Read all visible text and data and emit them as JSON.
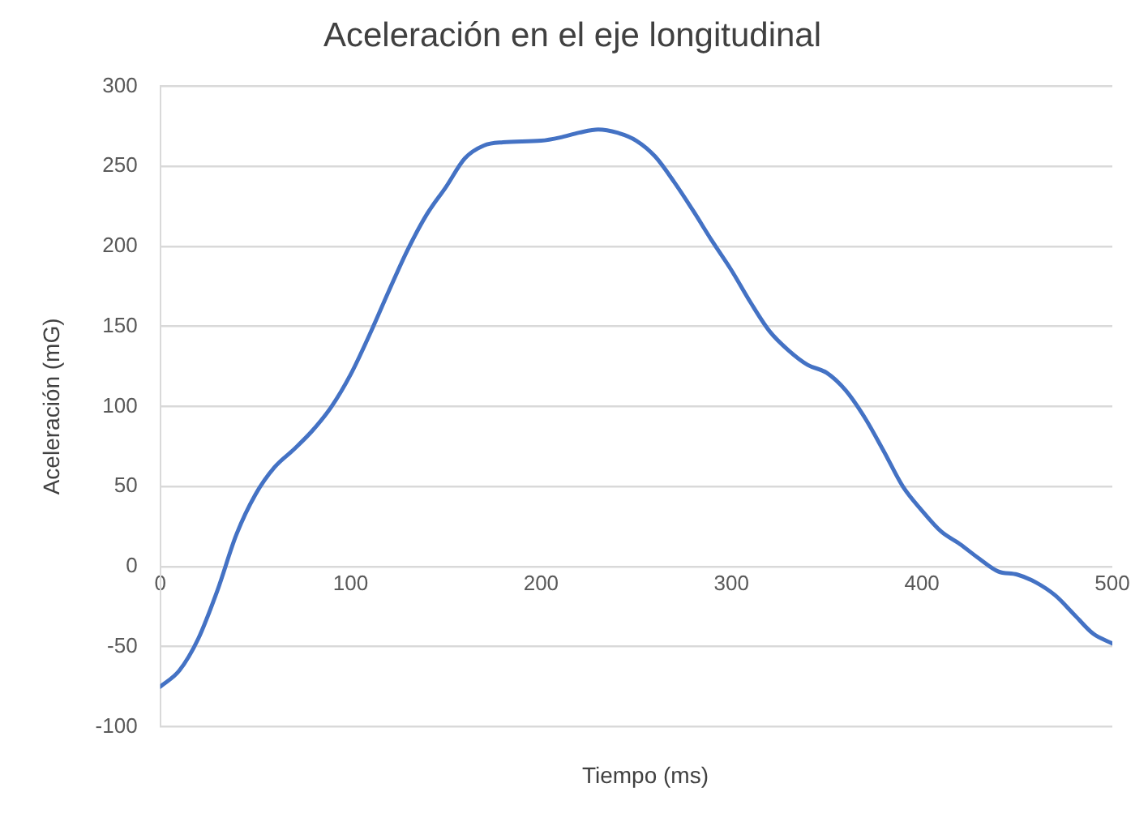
{
  "chart_data": {
    "type": "line",
    "title": "Aceleración en el eje longitudinal",
    "xlabel": "Tiempo (ms)",
    "ylabel": "Aceleración (mG)",
    "x": [
      0,
      10,
      20,
      30,
      40,
      50,
      60,
      70,
      80,
      90,
      100,
      110,
      120,
      130,
      140,
      150,
      160,
      170,
      180,
      200,
      210,
      220,
      230,
      240,
      250,
      260,
      270,
      280,
      290,
      300,
      310,
      320,
      330,
      340,
      350,
      360,
      370,
      380,
      390,
      400,
      410,
      420,
      430,
      440,
      450,
      460,
      470,
      480,
      490,
      500
    ],
    "series": [
      {
        "color": "#4472c4",
        "values": [
          -75,
          -65,
          -45,
          -15,
          20,
          45,
          62,
          73,
          85,
          100,
          120,
          145,
          172,
          198,
          220,
          237,
          255,
          263,
          265,
          266,
          268,
          271,
          273,
          271,
          266,
          256,
          240,
          222,
          203,
          185,
          165,
          147,
          135,
          126,
          121,
          110,
          93,
          72,
          50,
          35,
          22,
          14,
          5,
          -3,
          -5,
          -10,
          -18,
          -30,
          -42,
          -48
        ]
      }
    ],
    "xlim": [
      0,
      500
    ],
    "xticks": [
      0,
      100,
      200,
      300,
      400,
      500
    ],
    "ylim": [
      -100,
      300
    ],
    "yticks": [
      -100,
      -50,
      0,
      50,
      100,
      150,
      200,
      250,
      300
    ],
    "grid": "y",
    "legend": false,
    "marker": "none",
    "line_style": "solid"
  }
}
